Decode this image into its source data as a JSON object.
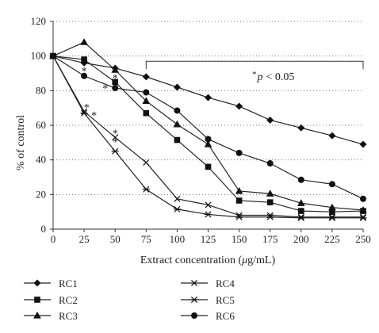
{
  "chart_data": {
    "type": "line",
    "xlabel_prefix": "Extract concentration (",
    "xlabel_mu": "μ",
    "xlabel_suffix": "g/mL)",
    "ylabel": "% of control",
    "xlim": [
      0,
      250
    ],
    "ylim": [
      0,
      120
    ],
    "xticks": [
      0,
      25,
      50,
      75,
      100,
      125,
      150,
      175,
      200,
      225,
      250
    ],
    "yticks": [
      0,
      20,
      40,
      60,
      80,
      100,
      120
    ],
    "grid": "horizontal dotted",
    "legend_position": "bottom",
    "series": [
      {
        "name": "RC1",
        "marker": "diamond",
        "x": [
          0,
          25,
          50,
          75,
          100,
          125,
          150,
          175,
          200,
          225,
          250
        ],
        "y": [
          100,
          96,
          93,
          88,
          82,
          76,
          71,
          63,
          58.5,
          54,
          49
        ]
      },
      {
        "name": "RC2",
        "marker": "square",
        "x": [
          0,
          25,
          50,
          75,
          100,
          125,
          150,
          175,
          200,
          225,
          250
        ],
        "y": [
          100,
          98,
          85,
          67,
          51.5,
          36,
          16.5,
          15.5,
          10.5,
          10,
          10.5
        ]
      },
      {
        "name": "RC3",
        "marker": "triangle",
        "x": [
          0,
          25,
          50,
          75,
          100,
          125,
          150,
          175,
          200,
          225,
          250
        ],
        "y": [
          100,
          108,
          92,
          74,
          60.5,
          49,
          22,
          20.5,
          15,
          12.5,
          11
        ]
      },
      {
        "name": "RC4",
        "marker": "x",
        "x": [
          0,
          25,
          50,
          75,
          100,
          125,
          150,
          175,
          200,
          225,
          250
        ],
        "y": [
          100,
          68,
          53,
          38.5,
          17.5,
          14,
          8,
          8,
          7,
          7,
          7
        ]
      },
      {
        "name": "RC5",
        "marker": "asterisk",
        "x": [
          0,
          25,
          50,
          75,
          100,
          125,
          150,
          175,
          200,
          225,
          250
        ],
        "y": [
          100,
          67,
          45,
          23,
          11.5,
          8.5,
          7,
          7,
          6.5,
          6.5,
          6.5
        ]
      },
      {
        "name": "RC6",
        "marker": "circle",
        "x": [
          0,
          25,
          50,
          75,
          100,
          125,
          150,
          175,
          200,
          225,
          250
        ],
        "y": [
          100,
          88.5,
          81.5,
          79,
          68.5,
          52,
          44,
          38,
          28.5,
          26,
          17.5
        ]
      }
    ],
    "significance": {
      "star": "*",
      "p_label": "p",
      "operator": "< 0.05",
      "bracket_x": [
        75,
        250
      ],
      "bracket_y": 97
    },
    "asterisks": [
      {
        "x": 25,
        "y": 92
      },
      {
        "x": 27,
        "y": 71
      },
      {
        "x": 33,
        "y": 66.5
      },
      {
        "x": 50,
        "y": 56
      },
      {
        "x": 50,
        "y": 51
      },
      {
        "x": 50,
        "y": 88
      },
      {
        "x": 42,
        "y": 82
      }
    ]
  }
}
